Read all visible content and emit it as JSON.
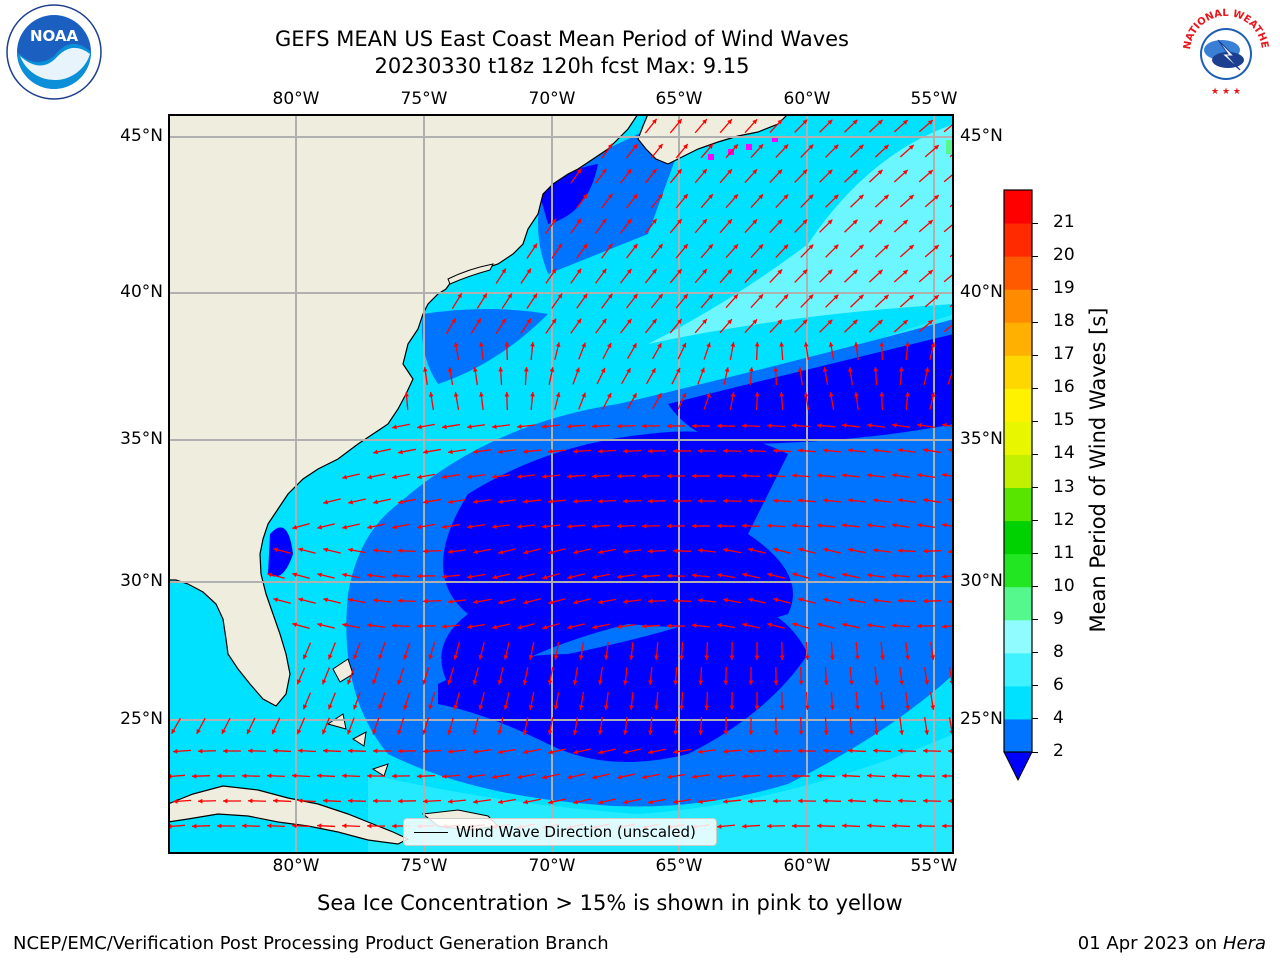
{
  "title": {
    "line1": "GEFS MEAN US East Coast Mean Period of Wind Waves",
    "line2": "20230330 t18z 120h fcst   Max: 9.15"
  },
  "logos": {
    "left": {
      "name": "noaa-logo",
      "text": "NOAA"
    },
    "right": {
      "name": "nws-logo",
      "text": "NATIONAL WEATHER SERVICE"
    }
  },
  "map": {
    "lon_labels": [
      "80°W",
      "75°W",
      "70°W",
      "65°W",
      "60°W",
      "55°W"
    ],
    "lat_labels": [
      "45°N",
      "40°N",
      "35°N",
      "30°N",
      "25°N"
    ],
    "lon_values": [
      -80,
      -75,
      -70,
      -65,
      -60,
      -55
    ],
    "lat_values": [
      45,
      40,
      35,
      30,
      25
    ],
    "extent": {
      "lon_min": -85,
      "lon_max": -54.4,
      "lat_min": 20.5,
      "lat_max": 46
    },
    "land_color": "#efedde",
    "grid_color": "#b0b0b0",
    "arrow_color": "#ff0000",
    "legend_label": "Wind Wave Direction (unscaled)"
  },
  "colorbar": {
    "label": "Mean Period of Wind Waves [s]",
    "ticks": [
      "2",
      "4",
      "6",
      "8",
      "9",
      "10",
      "11",
      "12",
      "13",
      "14",
      "15",
      "16",
      "17",
      "18",
      "19",
      "20",
      "21"
    ],
    "colors": [
      "#0073ff",
      "#00e1ff",
      "#40f2ff",
      "#90fcff",
      "#54f88c",
      "#22e622",
      "#00d100",
      "#58e600",
      "#c3f000",
      "#e8f700",
      "#fff200",
      "#ffd700",
      "#ffb000",
      "#ff8c00",
      "#ff5a00",
      "#ff2a00",
      "#ff0000"
    ],
    "under_color": "#0000ff"
  },
  "footer": {
    "note": "Sea Ice Concentration > 15% is shown in pink to yellow",
    "left": "NCEP/EMC/Verification Post Processing Product Generation Branch",
    "right_date": "01 Apr 2023 on ",
    "right_host": "Hera"
  }
}
